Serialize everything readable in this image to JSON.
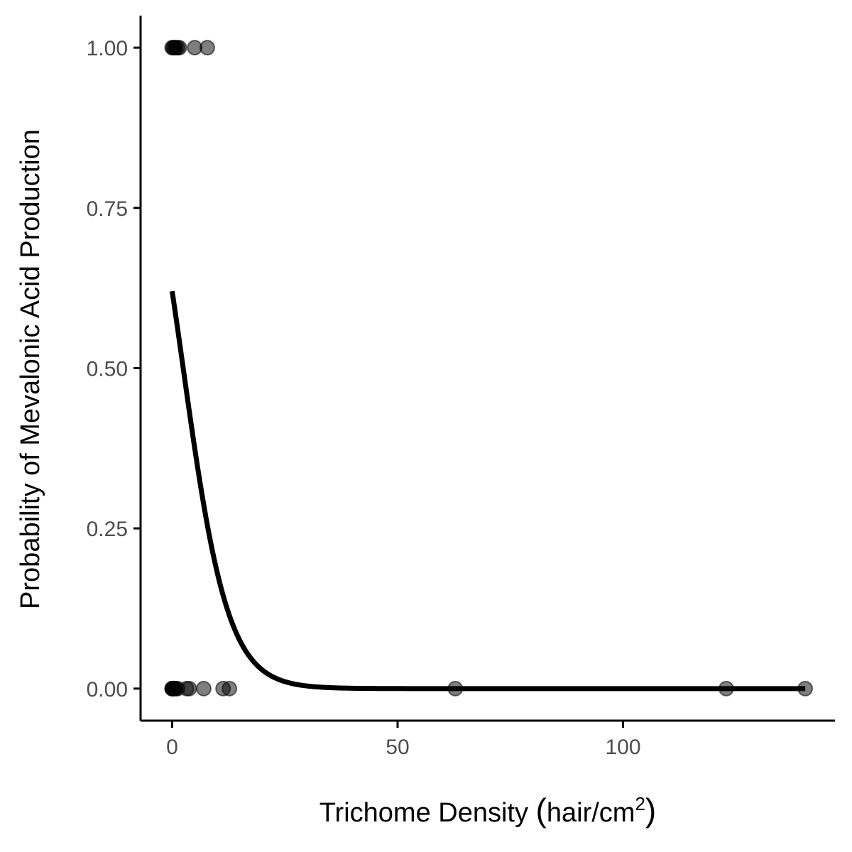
{
  "chart_data": {
    "type": "scatter",
    "title": "",
    "xlabel": {
      "main": "Trichome Density ",
      "open": "(",
      "unit": "hair/cm",
      "sup": "2",
      "close": ")"
    },
    "ylabel": "Probability of Mevalonic Acid Production",
    "xlim": [
      -7,
      147
    ],
    "ylim": [
      -0.05,
      1.05
    ],
    "x_ticks": [
      0,
      50,
      100
    ],
    "x_tick_labels": [
      "0",
      "50",
      "100"
    ],
    "y_ticks": [
      0,
      0.25,
      0.5,
      0.75,
      1
    ],
    "y_tick_labels": [
      "0.00",
      "0.25",
      "0.50",
      "0.75",
      "1.00"
    ],
    "grid": false,
    "legend": "none",
    "point_color": "#000000",
    "point_opacity": 0.5,
    "line_color": "#000000",
    "points": [
      {
        "x": 0,
        "y": 1
      },
      {
        "x": 0.2,
        "y": 1
      },
      {
        "x": 0.5,
        "y": 1
      },
      {
        "x": 0.8,
        "y": 1
      },
      {
        "x": 1.2,
        "y": 1
      },
      {
        "x": 1.6,
        "y": 1
      },
      {
        "x": 5,
        "y": 1
      },
      {
        "x": 7.8,
        "y": 1
      },
      {
        "x": 0,
        "y": 0
      },
      {
        "x": 0,
        "y": 0
      },
      {
        "x": 0.1,
        "y": 0
      },
      {
        "x": 0.3,
        "y": 0
      },
      {
        "x": 0.5,
        "y": 0
      },
      {
        "x": 0.8,
        "y": 0
      },
      {
        "x": 1.2,
        "y": 0
      },
      {
        "x": 3.2,
        "y": 0
      },
      {
        "x": 3.8,
        "y": 0
      },
      {
        "x": 7,
        "y": 0
      },
      {
        "x": 11.3,
        "y": 0
      },
      {
        "x": 12.7,
        "y": 0
      },
      {
        "x": 62.8,
        "y": 0
      },
      {
        "x": 122.9,
        "y": 0
      },
      {
        "x": 140.4,
        "y": 0
      }
    ],
    "fit": {
      "type": "logistic",
      "intercept": 0.49,
      "slope": -0.2,
      "x_range": [
        0,
        140.4
      ]
    }
  }
}
